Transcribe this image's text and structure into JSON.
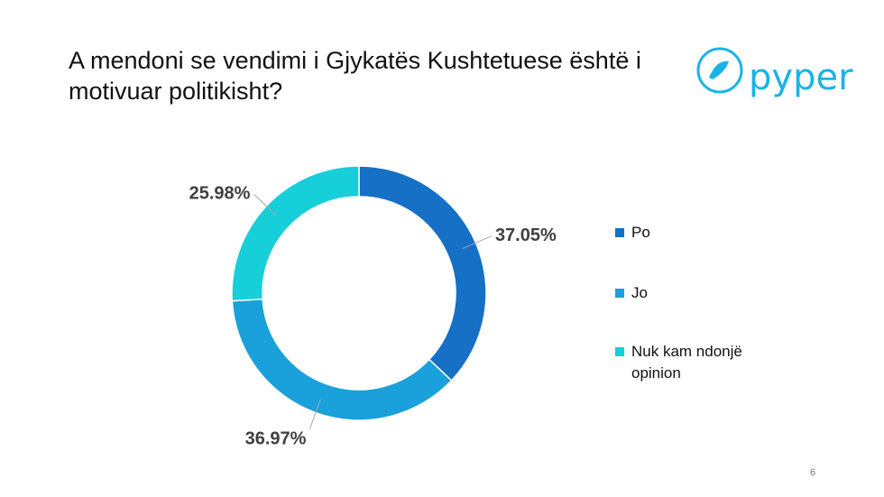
{
  "chart_data": {
    "type": "donut",
    "title": "A mendoni se vendimi i Gjykatës Kushtetuese është i motivuar politikisht?",
    "categories": [
      "Po",
      "Jo",
      "Nuk kam ndonjë opinion"
    ],
    "values": [
      37.05,
      36.97,
      25.98
    ],
    "value_labels": [
      "37.05%",
      "36.97%",
      "25.98%"
    ],
    "colors": [
      "#1570c6",
      "#1aa0da",
      "#16cfd9"
    ],
    "legend": "right"
  },
  "logo": "pyper",
  "page_number": "6"
}
